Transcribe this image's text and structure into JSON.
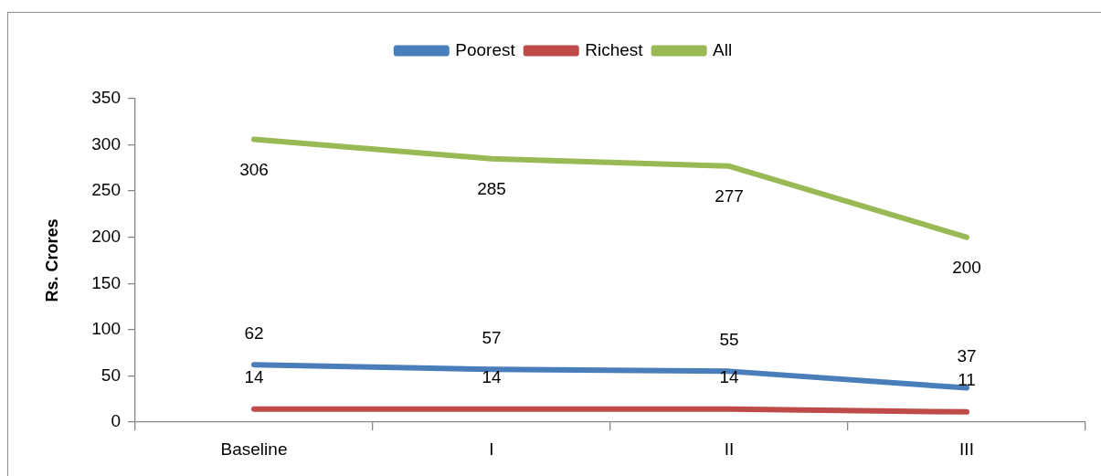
{
  "chart_data": {
    "type": "line",
    "ylabel": "Rs. Crores",
    "categories": [
      "Baseline",
      "I",
      "II",
      "III"
    ],
    "series": [
      {
        "name": "Poorest",
        "color": "#4a7ebb",
        "values": [
          62,
          57,
          55,
          37
        ]
      },
      {
        "name": "Richest",
        "color": "#be4b48",
        "values": [
          14,
          14,
          14,
          11
        ]
      },
      {
        "name": "All",
        "color": "#98b954",
        "values": [
          306,
          285,
          277,
          200
        ]
      }
    ],
    "ylim": [
      0,
      350
    ],
    "yticks": [
      0,
      50,
      100,
      150,
      200,
      250,
      300,
      350
    ],
    "data_labels": true,
    "legend": "top",
    "grid": false,
    "marker": "none",
    "line_style": "solid"
  }
}
